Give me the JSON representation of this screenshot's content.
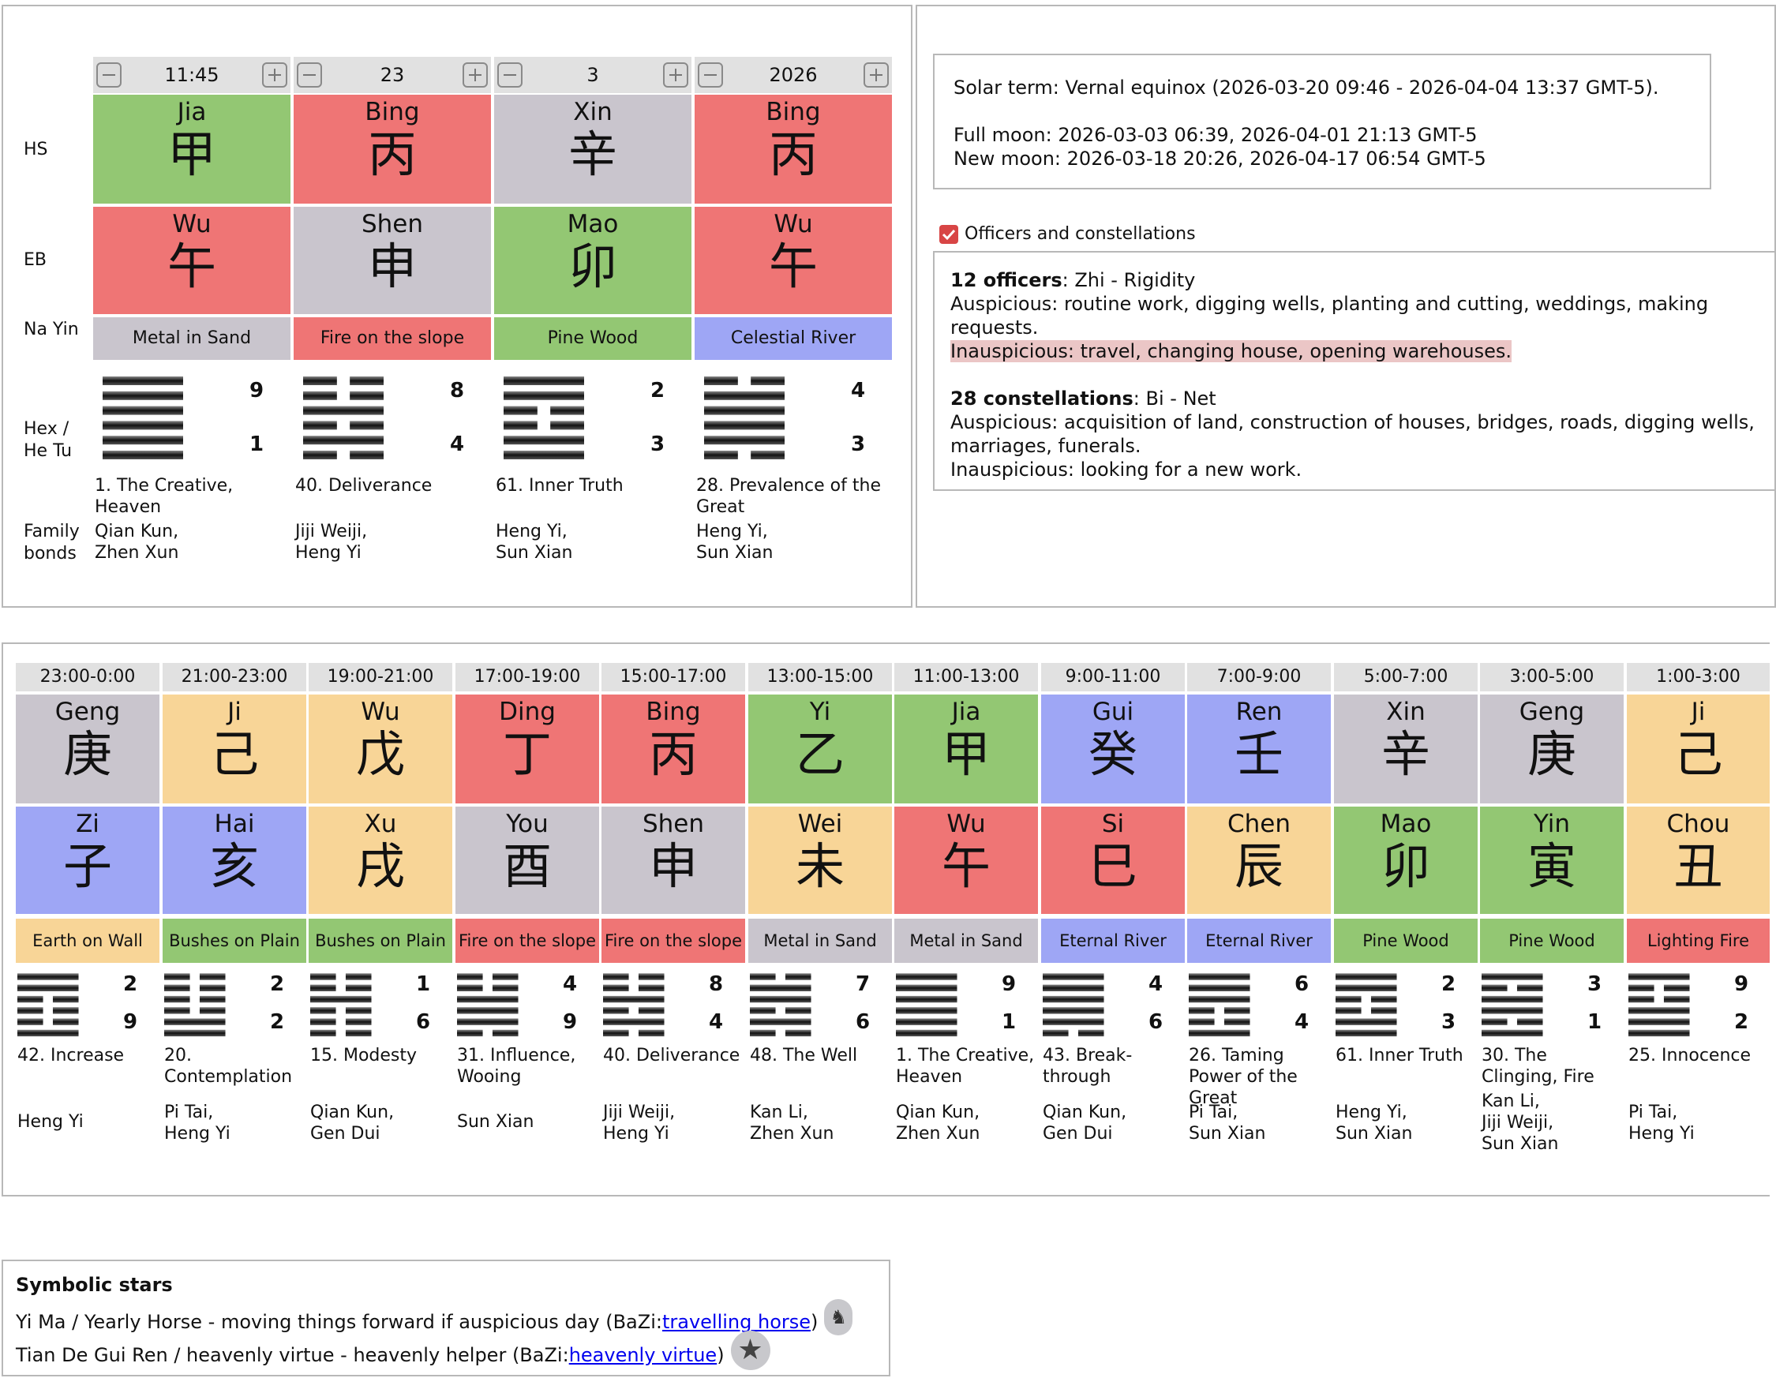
{
  "labels": {
    "hs": "HS",
    "eb": "EB",
    "nayin": "Na Yin",
    "hex": "Hex /\nHe Tu",
    "family": "Family\nbonds"
  },
  "pillars": [
    {
      "ctrl": "11:45",
      "stem": {
        "name": "Jia",
        "ch": "甲",
        "color": "#93c773"
      },
      "branch": {
        "name": "Wu",
        "ch": "午",
        "color": "#ef7575"
      },
      "nayin": {
        "text": "Metal in Sand",
        "color": "#c9c5cd"
      },
      "hex": {
        "lines": [
          1,
          1,
          1,
          1,
          1,
          1
        ],
        "top": "9",
        "bottom": "1"
      },
      "hexname": "1. The Creative, Heaven",
      "family": "Qian Kun,\nZhen Xun"
    },
    {
      "ctrl": "23",
      "stem": {
        "name": "Bing",
        "ch": "丙",
        "color": "#ef7575"
      },
      "branch": {
        "name": "Shen",
        "ch": "申",
        "color": "#c9c5cd"
      },
      "nayin": {
        "text": "Fire on the slope",
        "color": "#ef7575"
      },
      "hex": {
        "lines": [
          0,
          1,
          0,
          1,
          0,
          0
        ],
        "top": "8",
        "bottom": "4"
      },
      "hexname": "40. Deliverance",
      "family": "Jiji Weiji,\nHeng Yi"
    },
    {
      "ctrl": "3",
      "stem": {
        "name": "Xin",
        "ch": "辛",
        "color": "#c9c5cd"
      },
      "branch": {
        "name": "Mao",
        "ch": "卯",
        "color": "#93c773"
      },
      "nayin": {
        "text": "Pine Wood",
        "color": "#93c773"
      },
      "hex": {
        "lines": [
          1,
          1,
          0,
          0,
          1,
          1
        ],
        "top": "2",
        "bottom": "3"
      },
      "hexname": "61. Inner Truth",
      "family": "Heng Yi,\nSun Xian"
    },
    {
      "ctrl": "2026",
      "stem": {
        "name": "Bing",
        "ch": "丙",
        "color": "#ef7575"
      },
      "branch": {
        "name": "Wu",
        "ch": "午",
        "color": "#ef7575"
      },
      "nayin": {
        "text": "Celestial River",
        "color": "#9ea6f5"
      },
      "hex": {
        "lines": [
          0,
          1,
          1,
          1,
          1,
          0
        ],
        "top": "4",
        "bottom": "3"
      },
      "hexname": "28. Prevalence of the Great",
      "family": "Heng Yi,\nSun Xian"
    }
  ],
  "info": {
    "solar": "Solar term: Vernal equinox (2026-03-20 09:46 - 2026-04-04 13:37 GMT-5).",
    "full_moon": "Full moon: 2026-03-03 06:39, 2026-04-01 21:13 GMT-5",
    "new_moon": "New moon: 2026-03-18 20:26, 2026-04-17 06:54 GMT-5"
  },
  "officers": {
    "checkbox_label": "Officers and constellations",
    "checked": true,
    "officers_title": "12 officers",
    "officers_value": ": Zhi - Rigidity",
    "officers_ausp": "Auspicious: routine work, digging wells, planting and cutting, weddings, making requests.",
    "officers_inausp": "Inauspicious: travel, changing house, opening warehouses.",
    "const_title": "28 constellations",
    "const_value": ": Bi - Net",
    "const_ausp": "Auspicious: acquisition of land, construction of houses, bridges, roads, digging wells, marriages, funerals.",
    "const_inausp": "Inauspicious: looking for a new work."
  },
  "hours": [
    {
      "time": "23:00-0:00",
      "stem": {
        "name": "Geng",
        "ch": "庚",
        "color": "#c9c5cd"
      },
      "branch": {
        "name": "Zi",
        "ch": "子",
        "color": "#9ea6f5"
      },
      "nayin": {
        "text": "Earth on Wall",
        "color": "#f8d597"
      },
      "hex": {
        "lines": [
          1,
          0,
          0,
          0,
          1,
          1
        ],
        "top": "2",
        "bottom": "9"
      },
      "hexname": "42. Increase",
      "family": "Heng Yi"
    },
    {
      "time": "21:00-23:00",
      "stem": {
        "name": "Ji",
        "ch": "己",
        "color": "#f8d597"
      },
      "branch": {
        "name": "Hai",
        "ch": "亥",
        "color": "#9ea6f5"
      },
      "nayin": {
        "text": "Bushes on Plain",
        "color": "#93c773"
      },
      "hex": {
        "lines": [
          1,
          1,
          0,
          0,
          0,
          0
        ],
        "top": "2",
        "bottom": "2"
      },
      "hexname": "20. Contemplation",
      "family": "Pi Tai,\nHeng Yi"
    },
    {
      "time": "19:00-21:00",
      "stem": {
        "name": "Wu",
        "ch": "戊",
        "color": "#f8d597"
      },
      "branch": {
        "name": "Xu",
        "ch": "戌",
        "color": "#f8d597"
      },
      "nayin": {
        "text": "Bushes on Plain",
        "color": "#93c773"
      },
      "hex": {
        "lines": [
          0,
          0,
          0,
          1,
          0,
          0
        ],
        "top": "1",
        "bottom": "6"
      },
      "hexname": "15. Modesty",
      "family": "Qian Kun,\nGen Dui"
    },
    {
      "time": "17:00-19:00",
      "stem": {
        "name": "Ding",
        "ch": "丁",
        "color": "#ef7575"
      },
      "branch": {
        "name": "You",
        "ch": "酉",
        "color": "#c9c5cd"
      },
      "nayin": {
        "text": "Fire on the slope",
        "color": "#ef7575"
      },
      "hex": {
        "lines": [
          0,
          1,
          1,
          1,
          0,
          0
        ],
        "top": "4",
        "bottom": "9"
      },
      "hexname": "31. Influence, Wooing",
      "family": "Sun Xian"
    },
    {
      "time": "15:00-17:00",
      "stem": {
        "name": "Bing",
        "ch": "丙",
        "color": "#ef7575"
      },
      "branch": {
        "name": "Shen",
        "ch": "申",
        "color": "#c9c5cd"
      },
      "nayin": {
        "text": "Fire on the slope",
        "color": "#ef7575"
      },
      "hex": {
        "lines": [
          0,
          1,
          0,
          1,
          0,
          0
        ],
        "top": "8",
        "bottom": "4"
      },
      "hexname": "40. Deliverance",
      "family": "Jiji Weiji,\nHeng Yi"
    },
    {
      "time": "13:00-15:00",
      "stem": {
        "name": "Yi",
        "ch": "乙",
        "color": "#93c773"
      },
      "branch": {
        "name": "Wei",
        "ch": "未",
        "color": "#f8d597"
      },
      "nayin": {
        "text": "Metal in Sand",
        "color": "#c9c5cd"
      },
      "hex": {
        "lines": [
          0,
          1,
          0,
          1,
          1,
          0
        ],
        "top": "7",
        "bottom": "6"
      },
      "hexname": "48. The Well",
      "family": "Kan Li,\nZhen Xun"
    },
    {
      "time": "11:00-13:00",
      "stem": {
        "name": "Jia",
        "ch": "甲",
        "color": "#93c773"
      },
      "branch": {
        "name": "Wu",
        "ch": "午",
        "color": "#ef7575"
      },
      "nayin": {
        "text": "Metal in Sand",
        "color": "#c9c5cd"
      },
      "hex": {
        "lines": [
          1,
          1,
          1,
          1,
          1,
          1
        ],
        "top": "9",
        "bottom": "1"
      },
      "hexname": "1. The Creative, Heaven",
      "family": "Qian Kun,\nZhen Xun"
    },
    {
      "time": "9:00-11:00",
      "stem": {
        "name": "Gui",
        "ch": "癸",
        "color": "#9ea6f5"
      },
      "branch": {
        "name": "Si",
        "ch": "巳",
        "color": "#ef7575"
      },
      "nayin": {
        "text": "Eternal River",
        "color": "#9ea6f5"
      },
      "hex": {
        "lines": [
          0,
          1,
          1,
          1,
          1,
          1
        ],
        "top": "4",
        "bottom": "6"
      },
      "hexname": "43. Break-through",
      "family": "Qian Kun,\nGen Dui"
    },
    {
      "time": "7:00-9:00",
      "stem": {
        "name": "Ren",
        "ch": "壬",
        "color": "#9ea6f5"
      },
      "branch": {
        "name": "Chen",
        "ch": "辰",
        "color": "#f8d597"
      },
      "nayin": {
        "text": "Eternal River",
        "color": "#9ea6f5"
      },
      "hex": {
        "lines": [
          1,
          0,
          0,
          1,
          1,
          1
        ],
        "top": "6",
        "bottom": "4"
      },
      "hexname": "26. Taming Power of the Great",
      "family": "Pi Tai,\nSun Xian"
    },
    {
      "time": "5:00-7:00",
      "stem": {
        "name": "Xin",
        "ch": "辛",
        "color": "#c9c5cd"
      },
      "branch": {
        "name": "Mao",
        "ch": "卯",
        "color": "#93c773"
      },
      "nayin": {
        "text": "Pine Wood",
        "color": "#93c773"
      },
      "hex": {
        "lines": [
          1,
          1,
          0,
          0,
          1,
          1
        ],
        "top": "2",
        "bottom": "3"
      },
      "hexname": "61. Inner Truth",
      "family": "Heng Yi,\nSun Xian"
    },
    {
      "time": "3:00-5:00",
      "stem": {
        "name": "Geng",
        "ch": "庚",
        "color": "#c9c5cd"
      },
      "branch": {
        "name": "Yin",
        "ch": "寅",
        "color": "#93c773"
      },
      "nayin": {
        "text": "Pine Wood",
        "color": "#93c773"
      },
      "hex": {
        "lines": [
          1,
          0,
          1,
          1,
          0,
          1
        ],
        "top": "3",
        "bottom": "1"
      },
      "hexname": "30. The Clinging, Fire",
      "family": "Kan Li,\nJiji Weiji,\nSun Xian"
    },
    {
      "time": "1:00-3:00",
      "stem": {
        "name": "Ji",
        "ch": "己",
        "color": "#f8d597"
      },
      "branch": {
        "name": "Chou",
        "ch": "丑",
        "color": "#f8d597"
      },
      "nayin": {
        "text": "Lighting Fire",
        "color": "#ef7575"
      },
      "hex": {
        "lines": [
          1,
          1,
          1,
          0,
          0,
          1
        ],
        "top": "9",
        "bottom": "2"
      },
      "hexname": "25. Innocence",
      "family": "Pi Tai,\nHeng Yi"
    }
  ],
  "stars": {
    "title": "Symbolic stars",
    "items": [
      {
        "pre": "Yi Ma / Yearly Horse - moving things forward if auspicious day (BaZi: ",
        "link": "travelling horse",
        "post": ")",
        "icon": "horse-icon"
      },
      {
        "pre": "Tian De Gui Ren / heavenly virtue - heavenly helper (BaZi: ",
        "link": "heavenly virtue",
        "post": ")",
        "icon": "star-icon"
      }
    ]
  }
}
